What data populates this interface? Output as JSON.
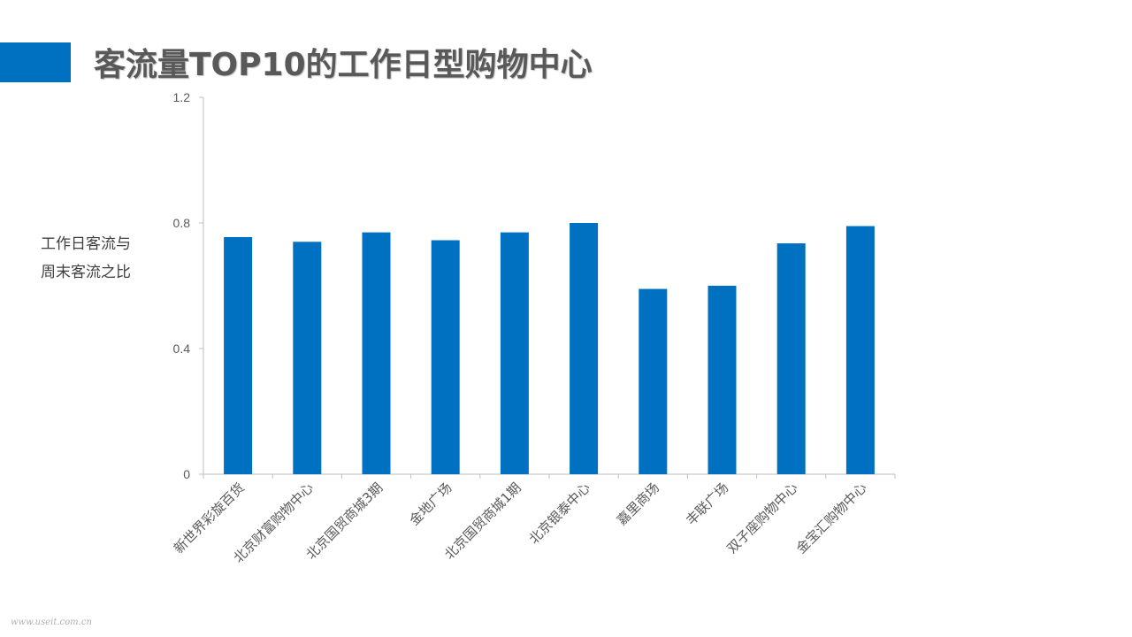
{
  "title": "客流量TOP10的工作日型购物中心",
  "colors": {
    "accent": "#0070C0",
    "bar": "#0070C0",
    "axis": "#BFBFBF",
    "tick_text": "#595959"
  },
  "watermark": "www.useit.com.cn",
  "chart_data": {
    "type": "bar",
    "title": "",
    "ylabel_lines": [
      "工作日客流与",
      "周末客流之比"
    ],
    "xlabel": "",
    "categories": [
      "新世界彩旋百货",
      "北京财富购物中心",
      "北京国贸商城3期",
      "金地广场",
      "北京国贸商城1期",
      "北京银泰中心",
      "嘉里商场",
      "丰联广场",
      "双子座购物中心",
      "金宝汇购物中心"
    ],
    "values": [
      0.755,
      0.74,
      0.77,
      0.745,
      0.77,
      0.8,
      0.59,
      0.6,
      0.735,
      0.79
    ],
    "ylim": [
      0,
      1.2
    ],
    "yticks": [
      {
        "value": 0,
        "label": "0"
      },
      {
        "value": 0.4,
        "label": "0.4"
      },
      {
        "value": 0.8,
        "label": "0.8"
      },
      {
        "value": 1.2,
        "label": "1.2"
      }
    ],
    "grid": false,
    "legend": "none"
  }
}
